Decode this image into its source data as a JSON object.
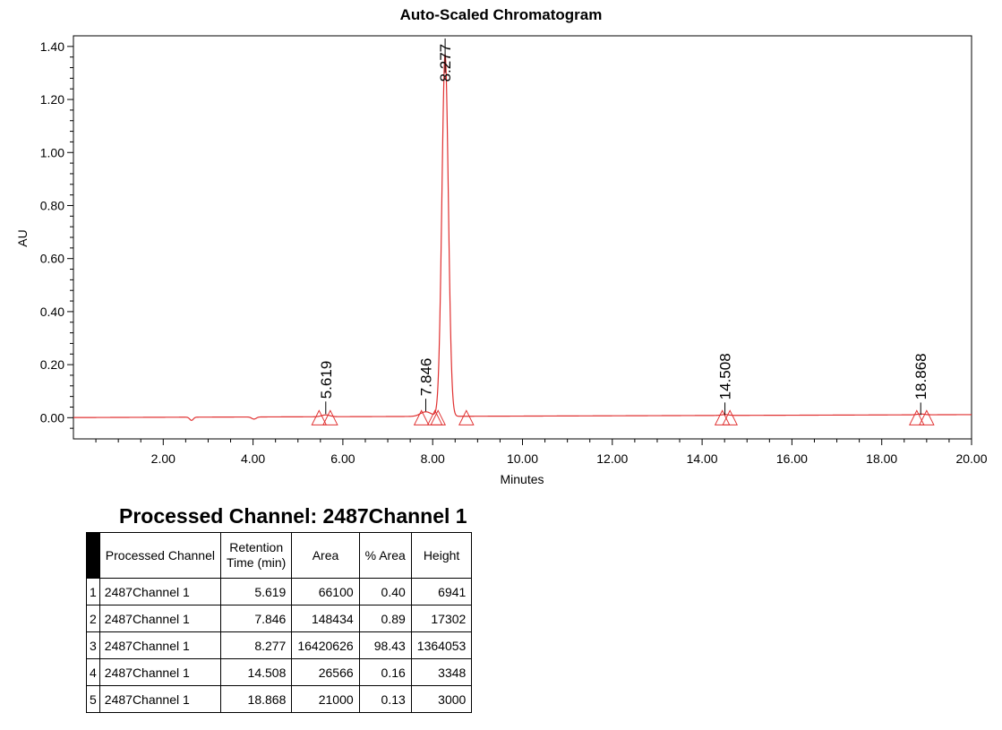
{
  "chart_data": {
    "type": "line",
    "title": "Auto-Scaled Chromatogram",
    "xlabel": "Minutes",
    "ylabel": "AU",
    "xlim": [
      0,
      20
    ],
    "ylim": [
      -0.08,
      1.44
    ],
    "x_ticks": [
      "2.00",
      "4.00",
      "6.00",
      "8.00",
      "10.00",
      "12.00",
      "14.00",
      "16.00",
      "18.00",
      "20.00"
    ],
    "y_ticks": [
      "0.00",
      "0.20",
      "0.40",
      "0.60",
      "0.80",
      "1.00",
      "1.20",
      "1.40"
    ],
    "line_color": "#e03030",
    "grid": false,
    "peak_labels": [
      "5.619",
      "7.846",
      "8.277",
      "14.508",
      "18.868"
    ],
    "peaks": [
      {
        "rt": 5.619,
        "height": 0.0069
      },
      {
        "rt": 7.846,
        "height": 0.0173
      },
      {
        "rt": 8.277,
        "height": 1.364
      },
      {
        "rt": 14.508,
        "height": 0.0033
      },
      {
        "rt": 18.868,
        "height": 0.003
      }
    ],
    "baseline_markers": [
      5.47,
      5.72,
      7.75,
      8.05,
      8.12,
      8.75,
      14.45,
      14.62,
      18.78,
      19.0
    ]
  },
  "table": {
    "title": "Processed Channel: 2487Channel 1",
    "headers": {
      "channel": "Processed Channel",
      "rt_line1": "Retention",
      "rt_line2": "Time (min)",
      "area": "Area",
      "pct_area": "% Area",
      "height": "Height"
    },
    "rows": [
      {
        "idx": "1",
        "channel": "2487Channel 1",
        "rt": "5.619",
        "area": "66100",
        "pct": "0.40",
        "height": "6941"
      },
      {
        "idx": "2",
        "channel": "2487Channel 1",
        "rt": "7.846",
        "area": "148434",
        "pct": "0.89",
        "height": "17302"
      },
      {
        "idx": "3",
        "channel": "2487Channel 1",
        "rt": "8.277",
        "area": "16420626",
        "pct": "98.43",
        "height": "1364053"
      },
      {
        "idx": "4",
        "channel": "2487Channel 1",
        "rt": "14.508",
        "area": "26566",
        "pct": "0.16",
        "height": "3348"
      },
      {
        "idx": "5",
        "channel": "2487Channel 1",
        "rt": "18.868",
        "area": "21000",
        "pct": "0.13",
        "height": "3000"
      }
    ]
  }
}
